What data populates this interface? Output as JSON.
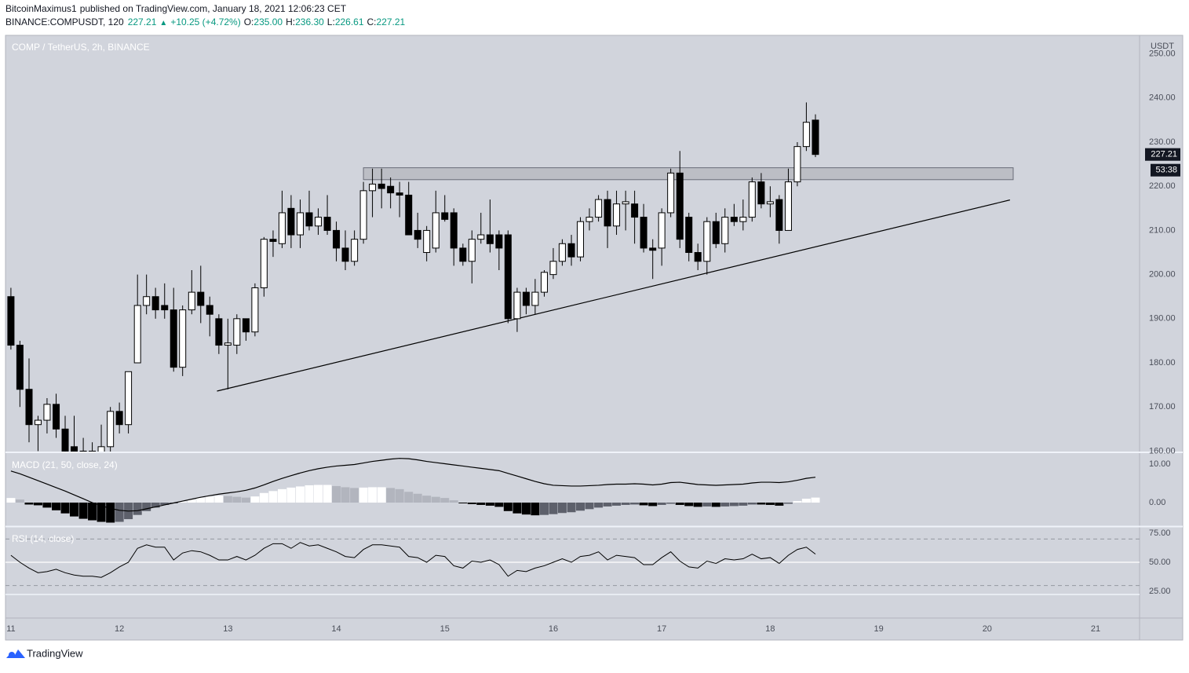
{
  "header": {
    "author": "BitcoinMaximus1",
    "published": "published on TradingView.com, January 18, 2021 12:06:23 CET",
    "symbol": "BINANCE:COMPUSDT, 120",
    "last": "227.21",
    "arrow": "▲",
    "change": "+10.25 (+4.72%)",
    "ohlc": [
      {
        "label": "O:",
        "value": "235.00"
      },
      {
        "label": "H:",
        "value": "236.30"
      },
      {
        "label": "L:",
        "value": "226.61"
      },
      {
        "label": "C:",
        "value": "227.21"
      }
    ]
  },
  "chart_data": [
    {
      "type": "candlestick",
      "title": "COMP / TetherUS, 2h, BINANCE",
      "y_unit": "USDT",
      "up_color": "#ffffff",
      "down_color": "#000000",
      "x": [
        11,
        11.083,
        11.167,
        11.25,
        11.333,
        11.417,
        11.5,
        11.583,
        11.667,
        11.75,
        11.833,
        11.917,
        12,
        12.083,
        12.167,
        12.25,
        12.333,
        12.417,
        12.5,
        12.583,
        12.667,
        12.75,
        12.833,
        12.917,
        13,
        13.083,
        13.167,
        13.25,
        13.333,
        13.417,
        13.5,
        13.583,
        13.667,
        13.75,
        13.833,
        13.917,
        14,
        14.083,
        14.167,
        14.25,
        14.333,
        14.417,
        14.5,
        14.583,
        14.667,
        14.75,
        14.833,
        14.917,
        15,
        15.083,
        15.167,
        15.25,
        15.333,
        15.417,
        15.5,
        15.583,
        15.667,
        15.75,
        15.833,
        15.917,
        16,
        16.083,
        16.167,
        16.25,
        16.333,
        16.417,
        16.5,
        16.583,
        16.667,
        16.75,
        16.833,
        16.917,
        17,
        17.083,
        17.167,
        17.25,
        17.333,
        17.417,
        17.5,
        17.583,
        17.667,
        17.75,
        17.833,
        17.917,
        18,
        18.083,
        18.167,
        18.25,
        18.333,
        18.417
      ],
      "open": [
        195,
        184,
        174,
        166,
        167,
        170.6,
        165,
        161,
        160,
        158,
        159,
        161,
        169,
        166,
        180,
        193,
        195,
        193,
        192,
        179,
        192,
        196,
        193,
        190,
        184,
        184,
        190,
        187,
        197,
        208,
        207,
        215,
        209,
        214,
        211,
        213,
        210,
        206,
        203,
        208,
        219,
        220.5,
        220,
        218.5,
        218,
        210,
        205,
        206,
        214,
        214,
        206,
        203,
        208,
        209,
        209,
        209,
        190,
        196,
        193,
        196,
        200,
        203,
        207,
        204,
        212,
        213,
        217,
        211,
        216,
        216,
        213,
        206,
        206,
        214,
        223,
        213,
        205,
        203,
        212,
        207,
        213,
        212,
        213,
        221,
        216,
        217,
        210,
        221,
        229,
        235
      ],
      "high": [
        197,
        185,
        181,
        168,
        172,
        173,
        168,
        168,
        163,
        162,
        166,
        170,
        171,
        178,
        200,
        200,
        197,
        198,
        197,
        193,
        201,
        202,
        195,
        191,
        190,
        191,
        190,
        198,
        208.5,
        210,
        219,
        218,
        217,
        219,
        215,
        218,
        212,
        210,
        210,
        221,
        224,
        224,
        222,
        221,
        221,
        214,
        211,
        219,
        218,
        215,
        207,
        210,
        214,
        217,
        210,
        210,
        197,
        197,
        199,
        201,
        206,
        208,
        209,
        213,
        215,
        218,
        219,
        219,
        219,
        219,
        216,
        208,
        215,
        224,
        228,
        214,
        207,
        213,
        214,
        215,
        216,
        217,
        222,
        223,
        220,
        218,
        224,
        230,
        239,
        236.3
      ],
      "low": [
        183,
        170,
        162,
        160,
        164,
        163,
        157,
        156,
        155,
        156,
        157,
        159,
        164,
        164,
        180,
        191,
        190,
        190,
        178,
        177,
        191,
        189,
        186,
        182,
        174,
        182,
        185,
        186,
        195,
        204,
        206,
        206,
        206,
        210,
        209,
        209,
        203,
        201,
        202,
        207,
        213,
        215,
        215,
        213,
        209,
        206,
        203,
        205,
        212,
        202,
        202,
        198,
        207,
        205,
        201,
        189,
        187,
        191,
        191,
        195,
        199,
        202,
        202,
        203,
        210,
        212,
        206,
        209,
        210,
        207,
        205,
        199,
        202,
        213,
        206,
        203,
        201,
        200,
        206,
        205,
        211,
        210,
        212,
        215,
        213,
        207,
        210,
        220,
        228,
        226.61
      ],
      "close": [
        184,
        174,
        166,
        167,
        170.6,
        165,
        160,
        158,
        157,
        160,
        161,
        169,
        166,
        178,
        193,
        195,
        192,
        192,
        179,
        192,
        196,
        193,
        191,
        184,
        184.5,
        190,
        187,
        197,
        208,
        207.5,
        214,
        209,
        214,
        211,
        213,
        210,
        206,
        203,
        208,
        219,
        220.5,
        219.5,
        218.5,
        218,
        209,
        208,
        210,
        214,
        212.5,
        206,
        203,
        208,
        209,
        207,
        206,
        190,
        196,
        193,
        196,
        200.5,
        203,
        207,
        204,
        212,
        213,
        217,
        211,
        216,
        216.5,
        213,
        206,
        205.5,
        214,
        223,
        208,
        205,
        203,
        212,
        207,
        213,
        212,
        213,
        221,
        216,
        216.5,
        210,
        221,
        229,
        234.5,
        227.21
      ],
      "xlim": [
        10.95,
        21.405
      ],
      "xticks": [
        11,
        12,
        13,
        14,
        15,
        16,
        17,
        18,
        19,
        20,
        21
      ],
      "ylim": [
        159.9,
        254.2
      ],
      "yticks": [
        {
          "value": 160,
          "label": "160.00"
        },
        {
          "value": 170,
          "label": "170.00"
        },
        {
          "value": 180,
          "label": "180.00"
        },
        {
          "value": 190,
          "label": "190.00"
        },
        {
          "value": 200,
          "label": "200.00"
        },
        {
          "value": 210,
          "label": "210.00"
        },
        {
          "value": 220,
          "label": "220.00"
        },
        {
          "value": 230,
          "label": "230.00"
        },
        {
          "value": 240,
          "label": "240.00"
        },
        {
          "value": 250,
          "label": "250.00"
        }
      ],
      "last_price": {
        "value": 227.21,
        "label": "227.21"
      },
      "countdown": "53:38",
      "zone": {
        "x": [
          14.25,
          20.24
        ],
        "y": [
          221.5,
          224.2
        ]
      },
      "trendline": {
        "x": [
          12.9,
          20.21
        ],
        "y": [
          173.6,
          216.9
        ]
      }
    },
    {
      "type": "macd",
      "title": "MACD (21, 50, close, 24)",
      "line_color": "#000000",
      "histogram_colors": {
        "pos_up": "#ffffff",
        "pos_down": "#b2b5be",
        "neg_down": "#000000",
        "neg_up": "#5d606b"
      },
      "histogram": [
        1.2,
        0.8,
        -0.5,
        -0.7,
        -1.3,
        -2,
        -2.8,
        -3.6,
        -4.2,
        -4.6,
        -5,
        -5.2,
        -5,
        -4.3,
        -3.2,
        -2.2,
        -1.3,
        -0.6,
        -0.2,
        0.3,
        0.8,
        1.3,
        1.6,
        1.8,
        1.7,
        1.5,
        1.3,
        1.6,
        2.5,
        3,
        3.5,
        3.9,
        4.2,
        4.5,
        4.6,
        4.6,
        4.3,
        4,
        3.8,
        3.9,
        4,
        4,
        3.8,
        3.5,
        2.8,
        2.3,
        1.8,
        1.5,
        1.2,
        0.6,
        -0.2,
        -0.4,
        -0.6,
        -0.8,
        -1.1,
        -2.2,
        -2.8,
        -3.1,
        -3.3,
        -3.2,
        -3,
        -2.7,
        -2.5,
        -2.1,
        -1.7,
        -1.3,
        -1,
        -0.8,
        -0.6,
        -0.5,
        -0.7,
        -0.9,
        -0.6,
        -0.3,
        -0.6,
        -0.9,
        -1.1,
        -1,
        -1.1,
        -1,
        -0.9,
        -0.8,
        -0.5,
        -0.5,
        -0.6,
        -0.8,
        -0.3,
        0.4,
        1,
        1.3
      ],
      "macd": [
        8.2,
        7.5,
        6.6,
        5.7,
        4.8,
        3.9,
        3,
        2,
        1,
        0,
        -0.8,
        -1.5,
        -2,
        -2.2,
        -2.1,
        -1.6,
        -1.1,
        -0.6,
        -0.1,
        0.4,
        0.9,
        1.4,
        1.8,
        2.2,
        2.5,
        2.8,
        3.2,
        3.8,
        4.6,
        5.5,
        6.3,
        7,
        7.7,
        8.3,
        8.8,
        9.2,
        9.5,
        9.7,
        9.9,
        10.3,
        10.7,
        11,
        11.3,
        11.5,
        11.4,
        11.1,
        10.7,
        10.4,
        10.1,
        9.8,
        9.5,
        9.2,
        8.9,
        8.6,
        8.3,
        7.6,
        6.9,
        6.2,
        5.5,
        4.9,
        4.5,
        4.4,
        4.3,
        4.3,
        4.4,
        4.5,
        4.7,
        4.8,
        4.8,
        4.9,
        4.8,
        4.6,
        4.8,
        5.2,
        5.3,
        5,
        4.7,
        4.6,
        4.5,
        4.6,
        4.7,
        4.8,
        5.1,
        5.3,
        5.3,
        5.2,
        5.4,
        5.8,
        6.3,
        6.6
      ],
      "ylim": [
        -6.12,
        12.86
      ],
      "yticks": [
        {
          "value": 0,
          "label": "0.00"
        },
        {
          "value": 10,
          "label": "10.00"
        }
      ]
    },
    {
      "type": "rsi",
      "title": "RSI (14, close)",
      "line_color": "#000000",
      "values": [
        56,
        50,
        45,
        41,
        42,
        44,
        41,
        39,
        38,
        38,
        37,
        41,
        46,
        50,
        62,
        65,
        63,
        63,
        52,
        58,
        60,
        59,
        56,
        52,
        52,
        55,
        52,
        56,
        62,
        66,
        66,
        62,
        67,
        64,
        65,
        62,
        59,
        55,
        54,
        61,
        65,
        65,
        64,
        63,
        55,
        54,
        50,
        56,
        55,
        47,
        45,
        51,
        50,
        52,
        48,
        38,
        43,
        42,
        45,
        47,
        50,
        53,
        50,
        55,
        56,
        59,
        52,
        56,
        55,
        54,
        48,
        48,
        54,
        59,
        51,
        46,
        45,
        51,
        49,
        53,
        52,
        53,
        57,
        53,
        54,
        49,
        56,
        61,
        63,
        57
      ],
      "bands": [
        30,
        70
      ],
      "ylim": [
        22.3,
        80.4
      ],
      "yticks": [
        {
          "value": 25,
          "label": "25.00"
        },
        {
          "value": 50,
          "label": "50.00"
        },
        {
          "value": 75,
          "label": "75.00"
        }
      ]
    }
  ],
  "footer": {
    "brand": "TradingView"
  }
}
